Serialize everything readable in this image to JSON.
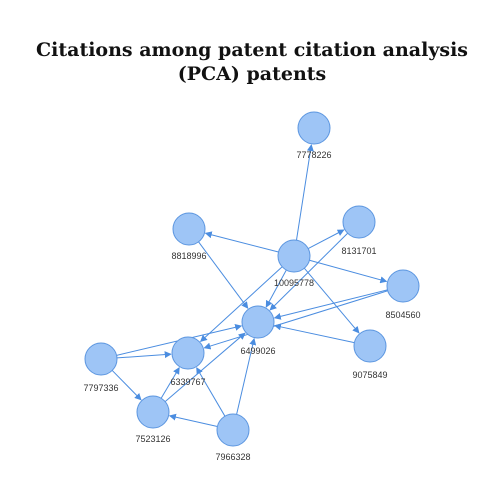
{
  "title_line1": "Citations among patent citation analysis",
  "title_line2": "(PCA) patents",
  "colors": {
    "node_fill": "#9ec5f6",
    "node_stroke": "#5c96e0",
    "edge": "#4b8de0"
  },
  "nodes": [
    {
      "id": "7778226",
      "label": "7778226"
    },
    {
      "id": "8818996",
      "label": "8818996"
    },
    {
      "id": "8131701",
      "label": "8131701"
    },
    {
      "id": "10095778",
      "label": "10095778"
    },
    {
      "id": "8504560",
      "label": "8504560"
    },
    {
      "id": "6499026",
      "label": "6499026"
    },
    {
      "id": "9075849",
      "label": "9075849"
    },
    {
      "id": "7797336",
      "label": "7797336"
    },
    {
      "id": "6339767",
      "label": "6339767"
    },
    {
      "id": "7523126",
      "label": "7523126"
    },
    {
      "id": "7966328",
      "label": "7966328"
    }
  ],
  "edges": [
    {
      "source": "10095778",
      "target": "7778226"
    },
    {
      "source": "10095778",
      "target": "8818996"
    },
    {
      "source": "10095778",
      "target": "8131701"
    },
    {
      "source": "10095778",
      "target": "8504560"
    },
    {
      "source": "10095778",
      "target": "9075849"
    },
    {
      "source": "10095778",
      "target": "6499026"
    },
    {
      "source": "10095778",
      "target": "6339767"
    },
    {
      "source": "8818996",
      "target": "6499026"
    },
    {
      "source": "8131701",
      "target": "6499026"
    },
    {
      "source": "8504560",
      "target": "6499026"
    },
    {
      "source": "8504560",
      "target": "6339767"
    },
    {
      "source": "9075849",
      "target": "6499026"
    },
    {
      "source": "7797336",
      "target": "6499026"
    },
    {
      "source": "7797336",
      "target": "6339767"
    },
    {
      "source": "7797336",
      "target": "7523126"
    },
    {
      "source": "7523126",
      "target": "6339767"
    },
    {
      "source": "7523126",
      "target": "6499026"
    },
    {
      "source": "7966328",
      "target": "6339767"
    },
    {
      "source": "7966328",
      "target": "6499026"
    },
    {
      "source": "7966328",
      "target": "7523126"
    }
  ]
}
